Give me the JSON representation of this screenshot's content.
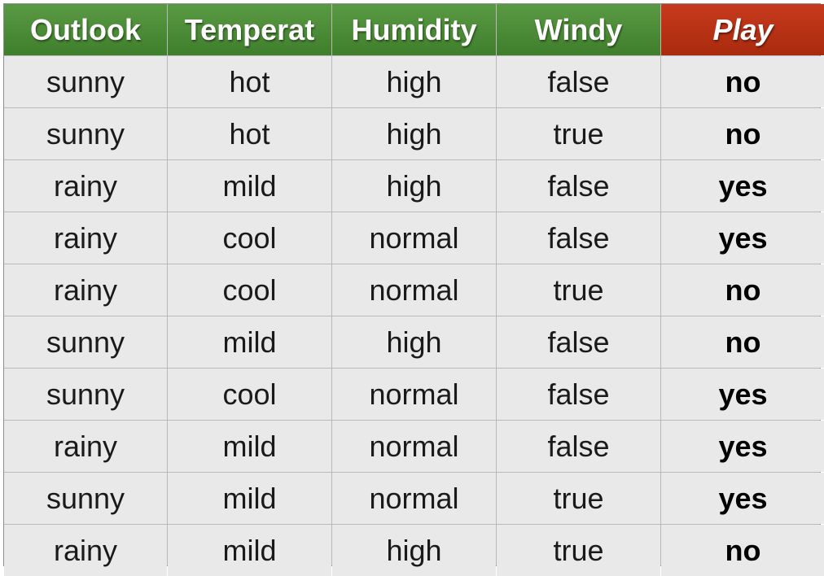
{
  "chart_data": {
    "type": "table",
    "columns": [
      "Outlook",
      "Temperat",
      "Humidity",
      "Windy",
      "Play"
    ],
    "rows": [
      [
        "sunny",
        "hot",
        "high",
        "false",
        "no"
      ],
      [
        "sunny",
        "hot",
        "high",
        "true",
        "no"
      ],
      [
        "rainy",
        "mild",
        "high",
        "false",
        "yes"
      ],
      [
        "rainy",
        "cool",
        "normal",
        "false",
        "yes"
      ],
      [
        "rainy",
        "cool",
        "normal",
        "true",
        "no"
      ],
      [
        "sunny",
        "mild",
        "high",
        "false",
        "no"
      ],
      [
        "sunny",
        "cool",
        "normal",
        "false",
        "yes"
      ],
      [
        "rainy",
        "mild",
        "normal",
        "false",
        "yes"
      ],
      [
        "sunny",
        "mild",
        "normal",
        "true",
        "yes"
      ],
      [
        "rainy",
        "mild",
        "high",
        "true",
        "no"
      ]
    ]
  },
  "colors": {
    "attribute_header": "#4a8a36",
    "target_header": "#b8310f",
    "cell_background": "#e9e9e9",
    "grid_line": "#b9b9b9"
  }
}
